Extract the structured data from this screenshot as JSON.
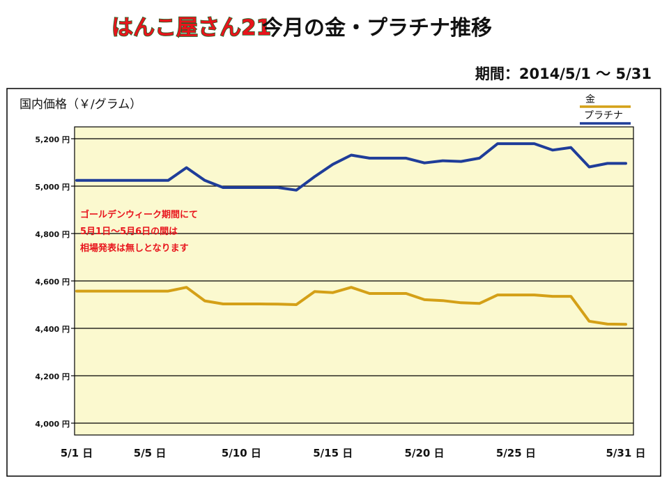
{
  "header": {
    "logo_text": "はんこ屋さん21",
    "title": "今月の金・プラチナ推移",
    "period": "期間：2014/5/1 ～ 5/31"
  },
  "chart_data": {
    "type": "line",
    "ylabel": "国内価格（￥/グラム）",
    "y_unit_suffix": "円",
    "ylim": [
      3950,
      5250
    ],
    "y_ticks": [
      4000,
      4200,
      4400,
      4600,
      4800,
      5000,
      5200
    ],
    "y_tick_labels": [
      "4,000 円",
      "4,200 円",
      "4,400 円",
      "4,600 円",
      "4,800 円",
      "5,000 円",
      "5,200 円"
    ],
    "xlim": [
      1,
      31
    ],
    "x_ticks": [
      1,
      5,
      10,
      15,
      20,
      25,
      31
    ],
    "x_tick_labels": [
      "5/1 日",
      "5/5 日",
      "5/10 日",
      "5/15 日",
      "5/20 日",
      "5/25 日",
      "5/31 日"
    ],
    "grid": true,
    "legend_position": "top-right",
    "annotation": {
      "lines": [
        "ゴールデンウィーク期間にて",
        "5月1日～5月6日の間は",
        "相場発表は無しとなります"
      ],
      "color": "#e8141c"
    },
    "series": [
      {
        "name": "金",
        "color": "#d4a017",
        "x": [
          1,
          2,
          3,
          4,
          5,
          6,
          7,
          8,
          9,
          10,
          11,
          12,
          13,
          14,
          15,
          16,
          17,
          18,
          19,
          20,
          21,
          22,
          23,
          24,
          25,
          26,
          27,
          28,
          29,
          30,
          31
        ],
        "values": [
          4557,
          4557,
          4557,
          4557,
          4557,
          4557,
          4573,
          4516,
          4503,
          4503,
          4503,
          4502,
          4500,
          4555,
          4551,
          4573,
          4547,
          4547,
          4547,
          4521,
          4517,
          4508,
          4505,
          4541,
          4541,
          4541,
          4535,
          4535,
          4430,
          4418,
          4417
        ]
      },
      {
        "name": "プラチナ",
        "color": "#1f3d99",
        "x": [
          1,
          2,
          3,
          4,
          5,
          6,
          7,
          8,
          9,
          10,
          11,
          12,
          13,
          14,
          15,
          16,
          17,
          18,
          19,
          20,
          21,
          22,
          23,
          24,
          25,
          26,
          27,
          28,
          29,
          30,
          31
        ],
        "values": [
          5024,
          5024,
          5024,
          5024,
          5024,
          5024,
          5078,
          5024,
          4994,
          4994,
          4994,
          4994,
          4983,
          5040,
          5092,
          5131,
          5118,
          5118,
          5118,
          5098,
          5107,
          5104,
          5118,
          5179,
          5179,
          5179,
          5152,
          5163,
          5081,
          5096,
          5096
        ]
      }
    ]
  }
}
